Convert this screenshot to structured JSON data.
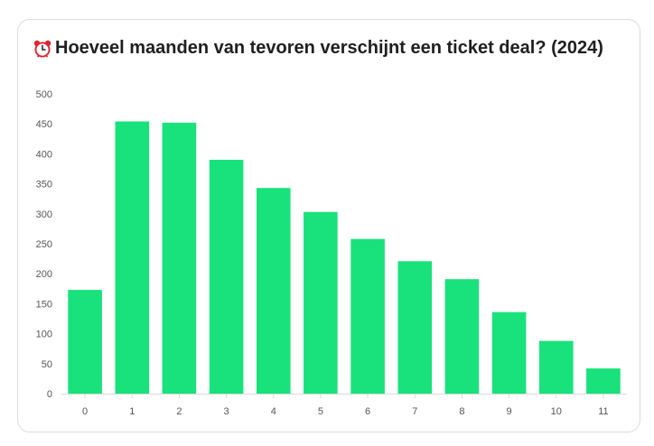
{
  "card": {
    "title": "Hoeveel maanden van tevoren verschijnt een ticket deal? (2024)",
    "title_icon": "alarm-clock-icon"
  },
  "chart_data": {
    "type": "bar",
    "title": "Hoeveel maanden van tevoren verschijnt een ticket deal? (2024)",
    "xlabel": "",
    "ylabel": "",
    "categories": [
      "0",
      "1",
      "2",
      "3",
      "4",
      "5",
      "6",
      "7",
      "8",
      "9",
      "10",
      "11"
    ],
    "values": [
      173,
      454,
      452,
      390,
      343,
      303,
      258,
      221,
      191,
      136,
      88,
      42
    ],
    "ylim": [
      0,
      500
    ],
    "yticks": [
      "0",
      "50",
      "100",
      "150",
      "200",
      "250",
      "300",
      "350",
      "400",
      "450",
      "500"
    ],
    "grid": false,
    "legend": "none",
    "bar_color": "#19e27c",
    "axis_color": "#d9d9d9"
  }
}
